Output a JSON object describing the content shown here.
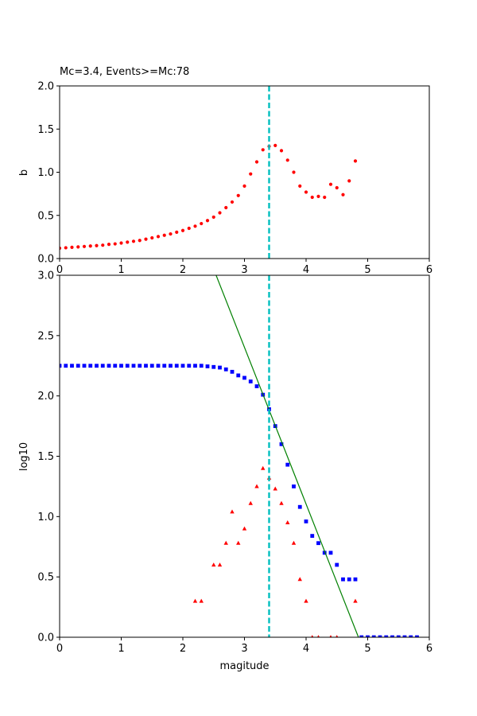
{
  "chart_data": [
    {
      "type": "scatter",
      "title": "Mc=3.4, Events>=Mc:78",
      "xlabel": "",
      "ylabel": "b",
      "xlim": [
        0,
        6
      ],
      "ylim": [
        0,
        2
      ],
      "xticks": [
        "0",
        "1",
        "2",
        "3",
        "4",
        "5",
        "6"
      ],
      "yticks": [
        "0.0",
        "0.5",
        "1.0",
        "1.5",
        "2.0"
      ],
      "mc_line": {
        "x": 3.4,
        "color": "#00bfbf"
      },
      "series": [
        {
          "marker": "circle",
          "color": "#ff0000",
          "points": [
            [
              0.0,
              0.12
            ],
            [
              0.1,
              0.125
            ],
            [
              0.2,
              0.13
            ],
            [
              0.3,
              0.135
            ],
            [
              0.4,
              0.14
            ],
            [
              0.5,
              0.145
            ],
            [
              0.6,
              0.15
            ],
            [
              0.7,
              0.155
            ],
            [
              0.8,
              0.165
            ],
            [
              0.9,
              0.17
            ],
            [
              1.0,
              0.18
            ],
            [
              1.1,
              0.19
            ],
            [
              1.2,
              0.2
            ],
            [
              1.3,
              0.21
            ],
            [
              1.4,
              0.225
            ],
            [
              1.5,
              0.24
            ],
            [
              1.6,
              0.255
            ],
            [
              1.7,
              0.27
            ],
            [
              1.8,
              0.285
            ],
            [
              1.9,
              0.305
            ],
            [
              2.0,
              0.325
            ],
            [
              2.1,
              0.35
            ],
            [
              2.2,
              0.375
            ],
            [
              2.3,
              0.405
            ],
            [
              2.4,
              0.44
            ],
            [
              2.5,
              0.48
            ],
            [
              2.6,
              0.53
            ],
            [
              2.7,
              0.59
            ],
            [
              2.8,
              0.655
            ],
            [
              2.9,
              0.73
            ],
            [
              3.0,
              0.84
            ],
            [
              3.1,
              0.98
            ],
            [
              3.2,
              1.12
            ],
            [
              3.3,
              1.26
            ],
            [
              3.4,
              1.3
            ],
            [
              3.5,
              1.31
            ],
            [
              3.6,
              1.25
            ],
            [
              3.7,
              1.14
            ],
            [
              3.8,
              1.0
            ],
            [
              3.9,
              0.84
            ],
            [
              4.0,
              0.77
            ],
            [
              4.1,
              0.71
            ],
            [
              4.2,
              0.72
            ],
            [
              4.3,
              0.71
            ],
            [
              4.4,
              0.86
            ],
            [
              4.5,
              0.82
            ],
            [
              4.6,
              0.74
            ],
            [
              4.7,
              0.9
            ],
            [
              4.8,
              1.13
            ]
          ]
        }
      ]
    },
    {
      "type": "scatter",
      "title": "",
      "xlabel": "magitude",
      "ylabel": "log10",
      "xlim": [
        0,
        6
      ],
      "ylim": [
        0,
        3
      ],
      "xticks": [
        "0",
        "1",
        "2",
        "3",
        "4",
        "5",
        "6"
      ],
      "yticks": [
        "0.0",
        "0.5",
        "1.0",
        "1.5",
        "2.0",
        "2.5",
        "3.0"
      ],
      "mc_line": {
        "x": 3.4,
        "color": "#00bfbf"
      },
      "fit_line": {
        "color": "#008000",
        "points": [
          [
            2.54,
            3.0
          ],
          [
            4.85,
            0.0
          ]
        ]
      },
      "series": [
        {
          "marker": "square",
          "color": "#0000ff",
          "points": [
            [
              0.0,
              2.25
            ],
            [
              0.1,
              2.25
            ],
            [
              0.2,
              2.25
            ],
            [
              0.3,
              2.25
            ],
            [
              0.4,
              2.25
            ],
            [
              0.5,
              2.25
            ],
            [
              0.6,
              2.25
            ],
            [
              0.7,
              2.25
            ],
            [
              0.8,
              2.25
            ],
            [
              0.9,
              2.25
            ],
            [
              1.0,
              2.25
            ],
            [
              1.1,
              2.25
            ],
            [
              1.2,
              2.25
            ],
            [
              1.3,
              2.25
            ],
            [
              1.4,
              2.25
            ],
            [
              1.5,
              2.25
            ],
            [
              1.6,
              2.25
            ],
            [
              1.7,
              2.25
            ],
            [
              1.8,
              2.25
            ],
            [
              1.9,
              2.25
            ],
            [
              2.0,
              2.25
            ],
            [
              2.1,
              2.25
            ],
            [
              2.2,
              2.25
            ],
            [
              2.3,
              2.25
            ],
            [
              2.4,
              2.245
            ],
            [
              2.5,
              2.24
            ],
            [
              2.6,
              2.235
            ],
            [
              2.7,
              2.22
            ],
            [
              2.8,
              2.2
            ],
            [
              2.9,
              2.17
            ],
            [
              3.0,
              2.15
            ],
            [
              3.1,
              2.12
            ],
            [
              3.2,
              2.08
            ],
            [
              3.3,
              2.01
            ],
            [
              3.4,
              1.89
            ],
            [
              3.5,
              1.75
            ],
            [
              3.6,
              1.6
            ],
            [
              3.7,
              1.43
            ],
            [
              3.8,
              1.25
            ],
            [
              3.9,
              1.08
            ],
            [
              4.0,
              0.96
            ],
            [
              4.1,
              0.84
            ],
            [
              4.2,
              0.78
            ],
            [
              4.3,
              0.7
            ],
            [
              4.4,
              0.7
            ],
            [
              4.5,
              0.6
            ],
            [
              4.6,
              0.48
            ],
            [
              4.7,
              0.48
            ],
            [
              4.8,
              0.48
            ],
            [
              4.9,
              0.0
            ],
            [
              5.0,
              0.0
            ],
            [
              5.1,
              0.0
            ],
            [
              5.2,
              0.0
            ],
            [
              5.3,
              0.0
            ],
            [
              5.4,
              0.0
            ],
            [
              5.5,
              0.0
            ],
            [
              5.6,
              0.0
            ],
            [
              5.7,
              0.0
            ],
            [
              5.8,
              0.0
            ]
          ]
        },
        {
          "marker": "triangle",
          "color": "#ff0000",
          "points": [
            [
              2.2,
              0.3
            ],
            [
              2.3,
              0.3
            ],
            [
              2.5,
              0.6
            ],
            [
              2.6,
              0.6
            ],
            [
              2.7,
              0.78
            ],
            [
              2.8,
              1.04
            ],
            [
              2.9,
              0.78
            ],
            [
              3.0,
              0.9
            ],
            [
              3.1,
              1.11
            ],
            [
              3.2,
              1.25
            ],
            [
              3.3,
              1.4
            ],
            [
              3.4,
              1.32
            ],
            [
              3.5,
              1.23
            ],
            [
              3.6,
              1.11
            ],
            [
              3.7,
              0.95
            ],
            [
              3.8,
              0.78
            ],
            [
              3.9,
              0.48
            ],
            [
              4.0,
              0.3
            ],
            [
              4.1,
              0.0
            ],
            [
              4.2,
              0.0
            ],
            [
              4.4,
              0.0
            ],
            [
              4.5,
              0.0
            ],
            [
              4.8,
              0.3
            ]
          ]
        }
      ]
    }
  ]
}
